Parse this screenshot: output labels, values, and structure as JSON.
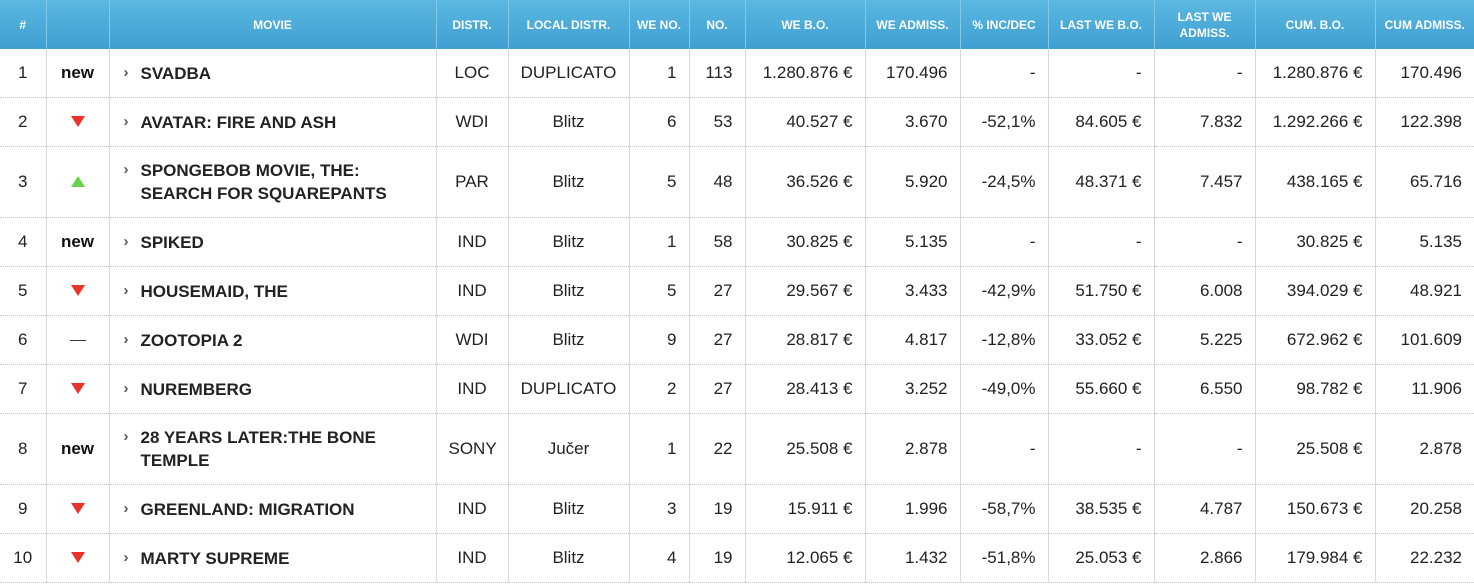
{
  "columns": [
    "#",
    "",
    "MOVIE",
    "DISTR.",
    "LOCAL DISTR.",
    "WE NO.",
    "NO.",
    "WE B.O.",
    "WE ADMISS.",
    "% INC/DEC",
    "LAST WE B.O.",
    "LAST WE ADMISS.",
    "CUM. B.O.",
    "CUM ADMISS."
  ],
  "rows": [
    {
      "rank": "1",
      "status": "new",
      "title": "SVADBA",
      "distr": "LOC",
      "local": "DUPLICATO",
      "we_no": "1",
      "no": "113",
      "we_bo": "1.280.876 €",
      "we_adm": "170.496",
      "pct": "-",
      "last_bo": "-",
      "last_adm": "-",
      "cum_bo": "1.280.876 €",
      "cum_adm": "170.496"
    },
    {
      "rank": "2",
      "status": "down",
      "title": "AVATAR: FIRE AND ASH",
      "distr": "WDI",
      "local": "Blitz",
      "we_no": "6",
      "no": "53",
      "we_bo": "40.527 €",
      "we_adm": "3.670",
      "pct": "-52,1%",
      "last_bo": "84.605 €",
      "last_adm": "7.832",
      "cum_bo": "1.292.266 €",
      "cum_adm": "122.398"
    },
    {
      "rank": "3",
      "status": "up",
      "title": "SPONGEBOB MOVIE, THE: SEARCH FOR SQUAREPANTS",
      "distr": "PAR",
      "local": "Blitz",
      "we_no": "5",
      "no": "48",
      "we_bo": "36.526 €",
      "we_adm": "5.920",
      "pct": "-24,5%",
      "last_bo": "48.371 €",
      "last_adm": "7.457",
      "cum_bo": "438.165 €",
      "cum_adm": "65.716"
    },
    {
      "rank": "4",
      "status": "new",
      "title": "SPIKED",
      "distr": "IND",
      "local": "Blitz",
      "we_no": "1",
      "no": "58",
      "we_bo": "30.825 €",
      "we_adm": "5.135",
      "pct": "-",
      "last_bo": "-",
      "last_adm": "-",
      "cum_bo": "30.825 €",
      "cum_adm": "5.135"
    },
    {
      "rank": "5",
      "status": "down",
      "title": "HOUSEMAID, THE",
      "distr": "IND",
      "local": "Blitz",
      "we_no": "5",
      "no": "27",
      "we_bo": "29.567 €",
      "we_adm": "3.433",
      "pct": "-42,9%",
      "last_bo": "51.750 €",
      "last_adm": "6.008",
      "cum_bo": "394.029 €",
      "cum_adm": "48.921"
    },
    {
      "rank": "6",
      "status": "same",
      "title": "ZOOTOPIA 2",
      "distr": "WDI",
      "local": "Blitz",
      "we_no": "9",
      "no": "27",
      "we_bo": "28.817 €",
      "we_adm": "4.817",
      "pct": "-12,8%",
      "last_bo": "33.052 €",
      "last_adm": "5.225",
      "cum_bo": "672.962 €",
      "cum_adm": "101.609"
    },
    {
      "rank": "7",
      "status": "down",
      "title": "NUREMBERG",
      "distr": "IND",
      "local": "DUPLICATO",
      "we_no": "2",
      "no": "27",
      "we_bo": "28.413 €",
      "we_adm": "3.252",
      "pct": "-49,0%",
      "last_bo": "55.660 €",
      "last_adm": "6.550",
      "cum_bo": "98.782 €",
      "cum_adm": "11.906"
    },
    {
      "rank": "8",
      "status": "new",
      "title": "28 YEARS LATER:THE BONE TEMPLE",
      "distr": "SONY",
      "local": "Jučer",
      "we_no": "1",
      "no": "22",
      "we_bo": "25.508 €",
      "we_adm": "2.878",
      "pct": "-",
      "last_bo": "-",
      "last_adm": "-",
      "cum_bo": "25.508 €",
      "cum_adm": "2.878"
    },
    {
      "rank": "9",
      "status": "down",
      "title": "GREENLAND: MIGRATION",
      "distr": "IND",
      "local": "Blitz",
      "we_no": "3",
      "no": "19",
      "we_bo": "15.911 €",
      "we_adm": "1.996",
      "pct": "-58,7%",
      "last_bo": "38.535 €",
      "last_adm": "4.787",
      "cum_bo": "150.673 €",
      "cum_adm": "20.258"
    },
    {
      "rank": "10",
      "status": "down",
      "title": "MARTY SUPREME",
      "distr": "IND",
      "local": "Blitz",
      "we_no": "4",
      "no": "19",
      "we_bo": "12.065 €",
      "we_adm": "1.432",
      "pct": "-51,8%",
      "last_bo": "25.053 €",
      "last_adm": "2.866",
      "cum_bo": "179.984 €",
      "cum_adm": "22.232"
    }
  ]
}
